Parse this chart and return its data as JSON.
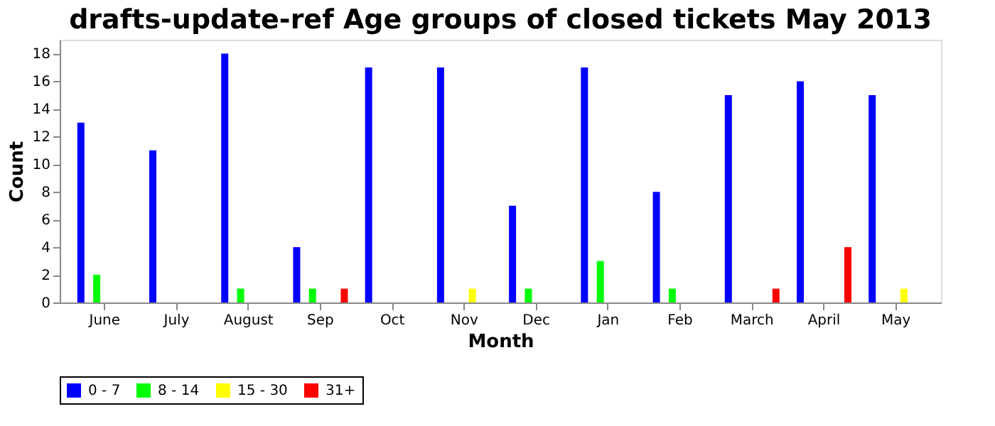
{
  "chart_data": {
    "type": "bar",
    "title": "drafts-update-ref Age groups of closed tickets May 2013",
    "xlabel": "Month",
    "ylabel": "Count",
    "categories": [
      "June",
      "July",
      "August",
      "Sep",
      "Oct",
      "Nov",
      "Dec",
      "Jan",
      "Feb",
      "March",
      "April",
      "May"
    ],
    "series": [
      {
        "name": "0 - 7",
        "color": "#0000ff",
        "values": [
          13,
          11,
          18,
          4,
          17,
          17,
          7,
          17,
          8,
          15,
          16,
          15
        ]
      },
      {
        "name": "8 - 14",
        "color": "#00ff00",
        "values": [
          2,
          0,
          1,
          1,
          0,
          0,
          1,
          3,
          1,
          0,
          0,
          0
        ]
      },
      {
        "name": "15 - 30",
        "color": "#ffff00",
        "values": [
          0,
          0,
          0,
          0,
          0,
          1,
          0,
          0,
          0,
          0,
          0,
          1
        ]
      },
      {
        "name": "31+",
        "color": "#ff0000",
        "values": [
          0,
          0,
          0,
          1,
          0,
          0,
          0,
          0,
          0,
          1,
          4,
          0
        ]
      }
    ],
    "ylim": [
      0,
      19
    ],
    "yticks": [
      0,
      2,
      4,
      6,
      8,
      10,
      12,
      14,
      16,
      18
    ],
    "grid": "y",
    "legend": "bottom"
  }
}
